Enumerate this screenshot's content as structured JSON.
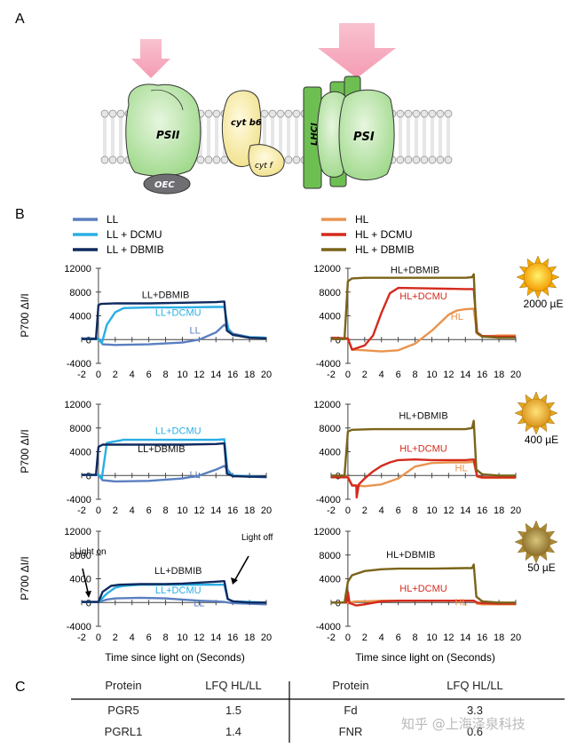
{
  "panel_a": {
    "letter": "A",
    "complexes": [
      {
        "name": "psii",
        "label": "PSII"
      },
      {
        "name": "oec",
        "label": "OEC"
      },
      {
        "name": "cytb6",
        "label": "cyt b6"
      },
      {
        "name": "cytf",
        "label": "cyt f"
      },
      {
        "name": "lhci",
        "label": "LHCI"
      },
      {
        "name": "psi",
        "label": "PSI"
      }
    ]
  },
  "panel_b": {
    "letter": "B",
    "legend": [
      {
        "key": "LL",
        "label": "LL",
        "color": "#5a7fc0"
      },
      {
        "key": "LLD",
        "label": "LL + DCMU",
        "color": "#2aaee4"
      },
      {
        "key": "LLB",
        "label": "LL + DBMIB",
        "color": "#0f2a5e"
      },
      {
        "key": "HL",
        "label": "HL",
        "color": "#e8944f"
      },
      {
        "key": "HLD",
        "label": "HL + DCMU",
        "color": "#d42a1c"
      },
      {
        "key": "HLB",
        "label": "HL + DBMIB",
        "color": "#7a6418"
      }
    ],
    "ylabel": "P700 ΔI/I",
    "xlabel": "Time since light on (Seconds)",
    "light_on_label": "Light on",
    "light_off_label": "Light off",
    "suns": [
      {
        "label": "2000 µE",
        "color": "#f5a800"
      },
      {
        "label": "400 µE",
        "color": "#e6a51a"
      },
      {
        "label": "50 µE",
        "color": "#a88a3a"
      }
    ]
  },
  "chart_data": [
    {
      "type": "line",
      "panel": "LL 2000 µE",
      "xlim": [
        -2,
        20
      ],
      "ylim": [
        -4000,
        12000
      ],
      "xticks": [
        -2,
        0,
        2,
        4,
        6,
        8,
        10,
        12,
        14,
        16,
        18,
        20
      ],
      "yticks": [
        -4000,
        0,
        4000,
        8000,
        12000
      ],
      "series": [
        {
          "name": "LL",
          "key": "LL",
          "x": [
            -2,
            0,
            0.5,
            2,
            6,
            10,
            12,
            14,
            15,
            16,
            18,
            20
          ],
          "y": [
            200,
            200,
            -800,
            -900,
            -800,
            -500,
            0,
            1200,
            2500,
            1000,
            400,
            300
          ]
        },
        {
          "name": "LL+DCMU",
          "key": "LLD",
          "x": [
            -2,
            0,
            0.4,
            1,
            2,
            3,
            6,
            10,
            14,
            15,
            15.5,
            16,
            18,
            20
          ],
          "y": [
            100,
            100,
            -600,
            2500,
            4600,
            5300,
            5400,
            5400,
            5500,
            5500,
            1500,
            800,
            400,
            300
          ]
        },
        {
          "name": "LL+DBMIB",
          "key": "LLB",
          "x": [
            -2,
            -0.3,
            0,
            0.3,
            2,
            6,
            10,
            14,
            15,
            15.3,
            16,
            18,
            20
          ],
          "y": [
            100,
            100,
            5800,
            6000,
            6100,
            6100,
            6200,
            6300,
            6400,
            1500,
            800,
            300,
            200
          ]
        }
      ],
      "annotations": [
        {
          "text": "LL+DBMIB",
          "key": "LLB",
          "x": 8,
          "y": 7000
        },
        {
          "text": "LL+DCMU",
          "key": "LLD",
          "x": 9.5,
          "y": 4000
        },
        {
          "text": "LL",
          "key": "LL",
          "x": 11.5,
          "y": 1000
        }
      ]
    },
    {
      "type": "line",
      "panel": "HL 2000 µE",
      "xlim": [
        -2,
        20
      ],
      "ylim": [
        -4000,
        12000
      ],
      "xticks": [
        -2,
        0,
        2,
        4,
        6,
        8,
        10,
        12,
        14,
        16,
        18,
        20
      ],
      "yticks": [
        -4000,
        0,
        4000,
        8000,
        12000
      ],
      "series": [
        {
          "name": "HL",
          "key": "HL",
          "x": [
            -2,
            0,
            0.5,
            2,
            4,
            6,
            8,
            10,
            12,
            13,
            14,
            15,
            15.4,
            16,
            18,
            20
          ],
          "y": [
            200,
            100,
            -1700,
            -1800,
            -2000,
            -1800,
            -700,
            1500,
            4200,
            4900,
            5100,
            5200,
            1000,
            500,
            700,
            700
          ]
        },
        {
          "name": "HL+DCMU",
          "key": "HLD",
          "x": [
            -2,
            0,
            0.5,
            2,
            3,
            4,
            5,
            6,
            10,
            14,
            15,
            15.4,
            16,
            18,
            20
          ],
          "y": [
            300,
            200,
            -1700,
            -1000,
            700,
            4500,
            7800,
            8700,
            8600,
            8500,
            8500,
            1200,
            600,
            500,
            500
          ]
        },
        {
          "name": "HL+DBMIB",
          "key": "HLB",
          "x": [
            -2,
            -0.4,
            0,
            0.5,
            2,
            6,
            10,
            14,
            14.8,
            15,
            15.3,
            16,
            18,
            20
          ],
          "y": [
            100,
            100,
            9800,
            10300,
            10400,
            10400,
            10400,
            10400,
            10500,
            11000,
            1200,
            500,
            300,
            300
          ]
        }
      ],
      "annotations": [
        {
          "text": "HL+DBMIB",
          "key": "HLB",
          "x": 8,
          "y": 11200
        },
        {
          "text": "HL+DCMU",
          "key": "HLD",
          "x": 9,
          "y": 6800
        },
        {
          "text": "HL",
          "key": "HL",
          "x": 13,
          "y": 3300
        }
      ]
    },
    {
      "type": "line",
      "panel": "LL 400 µE",
      "xlim": [
        -2,
        20
      ],
      "ylim": [
        -4000,
        12000
      ],
      "xticks": [
        -2,
        0,
        2,
        4,
        6,
        8,
        10,
        12,
        14,
        16,
        18,
        20
      ],
      "yticks": [
        -4000,
        0,
        4000,
        8000,
        12000
      ],
      "series": [
        {
          "name": "LL",
          "key": "LL",
          "x": [
            -2,
            0,
            0.5,
            2,
            6,
            10,
            12,
            14,
            15,
            16,
            18,
            20
          ],
          "y": [
            100,
            100,
            -800,
            -1000,
            -900,
            -500,
            0,
            1000,
            1600,
            -100,
            -200,
            -300
          ]
        },
        {
          "name": "LL+DCMU",
          "key": "LLD",
          "x": [
            -2,
            0,
            0.4,
            1,
            3,
            6,
            10,
            14,
            15,
            15.4,
            16,
            18,
            20
          ],
          "y": [
            100,
            100,
            -500,
            5500,
            6000,
            6000,
            6000,
            6000,
            6100,
            500,
            0,
            -100,
            -200
          ]
        },
        {
          "name": "LL+DBMIB",
          "key": "LLB",
          "x": [
            -2,
            -0.3,
            0,
            0.5,
            3,
            6,
            10,
            14,
            15,
            15.3,
            16,
            18,
            20
          ],
          "y": [
            100,
            100,
            4800,
            5200,
            5200,
            5200,
            5200,
            5300,
            5400,
            300,
            -100,
            -200,
            -200
          ]
        }
      ],
      "annotations": [
        {
          "text": "LL+DCMU",
          "key": "LLD",
          "x": 9.5,
          "y": 7000
        },
        {
          "text": "LL+DBMIB",
          "key": "LLB",
          "x": 7.5,
          "y": 3900
        },
        {
          "text": "LL",
          "key": "LL",
          "x": 11.5,
          "y": -400
        }
      ]
    },
    {
      "type": "line",
      "panel": "HL 400 µE",
      "xlim": [
        -2,
        20
      ],
      "ylim": [
        -4000,
        12000
      ],
      "xticks": [
        -2,
        0,
        2,
        4,
        6,
        8,
        10,
        12,
        14,
        16,
        18,
        20
      ],
      "yticks": [
        -4000,
        0,
        4000,
        8000,
        12000
      ],
      "series": [
        {
          "name": "HL",
          "key": "HL",
          "x": [
            -2,
            0,
            0.5,
            2,
            4,
            6,
            7,
            8,
            10,
            12,
            14,
            15,
            15.4,
            16,
            18,
            20
          ],
          "y": [
            -200,
            -200,
            -1600,
            -1800,
            -1500,
            -500,
            500,
            1500,
            2100,
            2200,
            2200,
            2300,
            -200,
            -400,
            -400,
            -400
          ]
        },
        {
          "name": "HL+DCMU",
          "key": "HLD",
          "x": [
            -2,
            0,
            0.5,
            1,
            1.05,
            1.3,
            2,
            3,
            4,
            5,
            6,
            8,
            10,
            14,
            15,
            15.4,
            16,
            18,
            20
          ],
          "y": [
            -300,
            -300,
            -1700,
            -1700,
            -3700,
            -1500,
            -500,
            700,
            1600,
            2200,
            2600,
            2700,
            2600,
            2600,
            2700,
            -100,
            -300,
            -300,
            -300
          ]
        },
        {
          "name": "HL+DBMIB",
          "key": "HLB",
          "x": [
            -2,
            -0.4,
            0,
            0.5,
            3,
            6,
            10,
            14,
            14.8,
            15,
            15.3,
            16,
            18,
            20
          ],
          "y": [
            0,
            0,
            7400,
            7700,
            7800,
            7800,
            7800,
            7800,
            8000,
            9200,
            1000,
            200,
            0,
            0
          ]
        }
      ],
      "annotations": [
        {
          "text": "HL+DBMIB",
          "key": "HLB",
          "x": 9,
          "y": 9500
        },
        {
          "text": "HL+DCMU",
          "key": "HLD",
          "x": 9,
          "y": 4000
        },
        {
          "text": "HL",
          "key": "HL",
          "x": 13.5,
          "y": 700
        }
      ]
    },
    {
      "type": "line",
      "panel": "LL 50 µE",
      "xlim": [
        -2,
        20
      ],
      "ylim": [
        -4000,
        12000
      ],
      "xticks": [
        -2,
        0,
        2,
        4,
        6,
        8,
        10,
        12,
        14,
        16,
        18,
        20
      ],
      "yticks": [
        -4000,
        0,
        4000,
        8000,
        12000
      ],
      "series": [
        {
          "name": "LL",
          "key": "LL",
          "x": [
            -2,
            0,
            1,
            2,
            5,
            8,
            10,
            12,
            14,
            15,
            16,
            18,
            20
          ],
          "y": [
            100,
            100,
            500,
            700,
            800,
            700,
            500,
            300,
            200,
            100,
            -100,
            -200,
            -300
          ]
        },
        {
          "name": "LL+DCMU",
          "key": "LLD",
          "x": [
            -2,
            0,
            1,
            2,
            3,
            5,
            8,
            10,
            14,
            15,
            15.4,
            16,
            18,
            20
          ],
          "y": [
            100,
            100,
            1500,
            2500,
            2800,
            3000,
            3000,
            3000,
            3000,
            3000,
            600,
            200,
            100,
            0
          ]
        },
        {
          "name": "LL+DBMIB",
          "key": "LLB",
          "x": [
            -2,
            0,
            0.5,
            1.5,
            2.5,
            5,
            8,
            10,
            14,
            15,
            15.4,
            16,
            18,
            20
          ],
          "y": [
            100,
            100,
            1800,
            2800,
            3000,
            3100,
            3100,
            3200,
            3500,
            3600,
            600,
            200,
            0,
            0
          ]
        }
      ],
      "annotations": [
        {
          "text": "LL+DBMIB",
          "key": "LLB",
          "x": 9.5,
          "y": 4800
        },
        {
          "text": "LL+DCMU",
          "key": "LLD",
          "x": 9.5,
          "y": 1500
        },
        {
          "text": "LL",
          "key": "LL",
          "x": 12,
          "y": -600
        }
      ]
    },
    {
      "type": "line",
      "panel": "HL 50 µE",
      "xlim": [
        -2,
        20
      ],
      "ylim": [
        -4000,
        12000
      ],
      "xticks": [
        -2,
        0,
        2,
        4,
        6,
        8,
        10,
        12,
        14,
        16,
        18,
        20
      ],
      "yticks": [
        -4000,
        0,
        4000,
        8000,
        12000
      ],
      "series": [
        {
          "name": "HL",
          "key": "HL",
          "x": [
            -2,
            0,
            1,
            2,
            4,
            6,
            8,
            10,
            12,
            14,
            15,
            15.4,
            16,
            18,
            20
          ],
          "y": [
            0,
            0,
            200,
            200,
            300,
            300,
            300,
            300,
            300,
            300,
            300,
            -200,
            -300,
            -300,
            -300
          ]
        },
        {
          "name": "HL+DCMU",
          "key": "HLD",
          "x": [
            -2,
            -0.2,
            0,
            0.2,
            1,
            2,
            4,
            6,
            8,
            10,
            14,
            15,
            15.4,
            16,
            18,
            20
          ],
          "y": [
            0,
            0,
            1800,
            -100,
            -500,
            -300,
            200,
            300,
            300,
            300,
            300,
            300,
            0,
            -100,
            -200,
            -200
          ]
        },
        {
          "name": "HL+DBMIB",
          "key": "HLB",
          "x": [
            -2,
            -0.4,
            0,
            0.5,
            2,
            4,
            6,
            10,
            14,
            14.8,
            15,
            15.3,
            16,
            18,
            20
          ],
          "y": [
            0,
            0,
            3500,
            4600,
            5300,
            5600,
            5700,
            5700,
            5800,
            5800,
            6400,
            1000,
            200,
            0,
            0
          ]
        }
      ],
      "annotations": [
        {
          "text": "HL+DBMIB",
          "key": "HLB",
          "x": 7.5,
          "y": 7500
        },
        {
          "text": "HL+DCMU",
          "key": "HLD",
          "x": 9,
          "y": 1800
        },
        {
          "text": "HL",
          "key": "HL",
          "x": 13.5,
          "y": -500
        }
      ]
    }
  ],
  "panel_c": {
    "letter": "C",
    "headers": [
      "Protein",
      "LFQ HL/LL",
      "Protein",
      "LFQ HL/LL"
    ],
    "rows": [
      [
        "PGR5",
        "1.5",
        "Fd",
        "3.3"
      ],
      [
        "PGRL1",
        "1.4",
        "FNR",
        "0.6"
      ]
    ]
  },
  "watermark": "知乎 @上海泽泉科技"
}
